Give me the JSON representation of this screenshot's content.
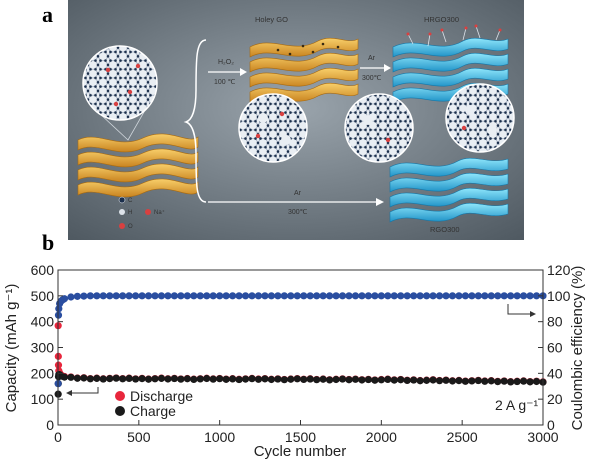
{
  "panels": {
    "a": "a",
    "b": "b"
  },
  "schematic": {
    "holey_go": "Holey GO",
    "hrgo300": "HRGO300",
    "rgo300": "RGO300",
    "h2o2": "H₂O₂",
    "temp_100": "100 ℃",
    "ar_1": "Ar",
    "temp_300_1": "300℃",
    "ar_2": "Ar",
    "temp_300_2": "300℃",
    "legend_c": "C",
    "legend_h": "H",
    "legend_na": "Na⁺",
    "legend_o": "O",
    "colors": {
      "go_sheet": "#e8a838",
      "rgo_sheet": "#3fb8df",
      "background": "#4e5860",
      "carbon": "#1b2f4c",
      "oxygen": "#d94040",
      "hydrogen": "#dde3ea"
    }
  },
  "chart_data": {
    "type": "scatter",
    "xlabel": "Cycle number",
    "ylabel_left": "Capacity (mAh g⁻¹)",
    "ylabel_right": "Coulombic efficiency (%)",
    "xlim": [
      0,
      3000
    ],
    "ylim_left": [
      0,
      600
    ],
    "ylim_right": [
      0,
      120
    ],
    "x_ticks": [
      "0",
      "500",
      "1000",
      "1500",
      "2000",
      "2500",
      "3000"
    ],
    "y_ticks_left": [
      "0",
      "100",
      "200",
      "300",
      "400",
      "500",
      "600"
    ],
    "y_ticks_right": [
      "0",
      "20",
      "40",
      "60",
      "80",
      "100",
      "120"
    ],
    "annotation": "2 A g⁻¹",
    "legend_placement": "bottom-left",
    "series": [
      {
        "name": "Discharge",
        "axis": "left",
        "color": "#e8263c",
        "x": [
          1,
          2,
          3,
          5,
          10,
          20,
          50,
          100,
          200,
          500,
          1000,
          1500,
          2000,
          2500,
          3000
        ],
        "y": [
          385,
          265,
          230,
          210,
          200,
          192,
          186,
          183,
          181,
          180,
          179,
          178,
          176,
          172,
          168
        ]
      },
      {
        "name": "Charge",
        "axis": "left",
        "color": "#1a1a1a",
        "x": [
          1,
          2,
          3,
          5,
          10,
          20,
          50,
          100,
          200,
          500,
          1000,
          1500,
          2000,
          2500,
          3000
        ],
        "y": [
          120,
          160,
          185,
          195,
          193,
          188,
          184,
          182,
          180,
          179,
          178,
          177,
          175,
          171,
          167
        ]
      },
      {
        "name": "",
        "axis": "right",
        "color": "#2a4ea0",
        "x": [
          1,
          3,
          5,
          10,
          20,
          30,
          50,
          100,
          200,
          500,
          1000,
          1500,
          2000,
          2500,
          3000
        ],
        "y": [
          32,
          85,
          90,
          94,
          96,
          97,
          98.5,
          99.5,
          100,
          100,
          100,
          100,
          100,
          100,
          100
        ]
      }
    ]
  }
}
